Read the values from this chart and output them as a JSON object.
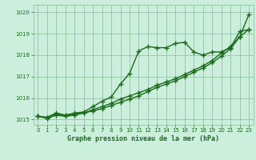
{
  "xlabel": "Graphe pression niveau de la mer (hPa)",
  "x": [
    0,
    1,
    2,
    3,
    4,
    5,
    6,
    7,
    8,
    9,
    10,
    11,
    12,
    13,
    14,
    15,
    16,
    17,
    18,
    19,
    20,
    21,
    22,
    23
  ],
  "line1": [
    1015.15,
    1015.1,
    1015.3,
    1015.2,
    1015.3,
    1015.35,
    1015.6,
    1015.85,
    1016.05,
    1016.65,
    1017.15,
    1018.2,
    1018.4,
    1018.35,
    1018.35,
    1018.55,
    1018.6,
    1018.15,
    1018.0,
    1018.15,
    1018.15,
    1018.35,
    1019.1,
    1019.2
  ],
  "line2": [
    1015.15,
    1015.05,
    1015.2,
    1015.15,
    1015.2,
    1015.3,
    1015.45,
    1015.6,
    1015.75,
    1015.95,
    1016.1,
    1016.25,
    1016.4,
    1016.6,
    1016.75,
    1016.9,
    1017.1,
    1017.3,
    1017.5,
    1017.75,
    1018.1,
    1018.4,
    1018.85,
    1019.2
  ],
  "line3": [
    1015.15,
    1015.1,
    1015.25,
    1015.2,
    1015.25,
    1015.3,
    1015.4,
    1015.5,
    1015.65,
    1015.8,
    1015.95,
    1016.1,
    1016.3,
    1016.5,
    1016.65,
    1016.8,
    1017.0,
    1017.2,
    1017.4,
    1017.65,
    1017.95,
    1018.3,
    1018.85,
    1019.9
  ],
  "line_color": "#1a6b1a",
  "bg_color": "#cceedd",
  "grid_color": "#88bb99",
  "text_color": "#1a6b1a",
  "ylim": [
    1014.75,
    1020.35
  ],
  "yticks": [
    1015,
    1016,
    1017,
    1018,
    1019,
    1020
  ],
  "xticks": [
    0,
    1,
    2,
    3,
    4,
    5,
    6,
    7,
    8,
    9,
    10,
    11,
    12,
    13,
    14,
    15,
    16,
    17,
    18,
    19,
    20,
    21,
    22,
    23
  ],
  "marker": "+",
  "marker_size": 4,
  "line_width": 1.0
}
